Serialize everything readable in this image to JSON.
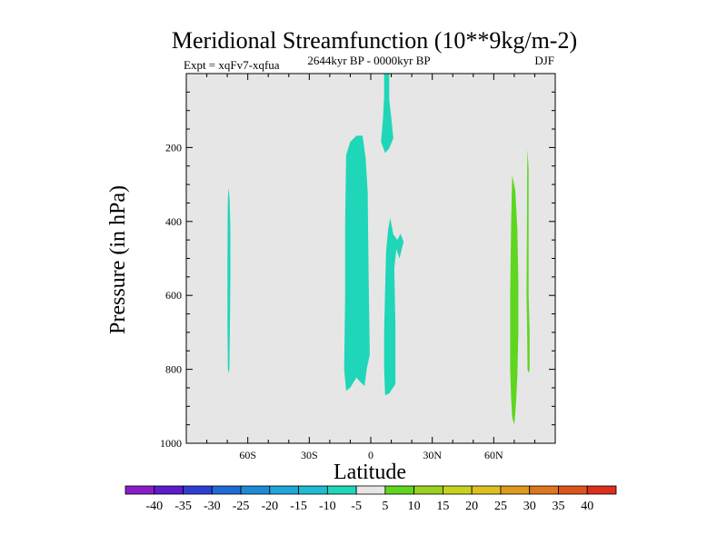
{
  "chart_data": {
    "type": "contour",
    "title": "Meridional Streamfunction (10**9kg/m-2)",
    "subtitle_left": "Expt = xqFv7-xqfua",
    "subtitle_center": "2644kyr BP - 0000kyr BP",
    "subtitle_right": "DJF",
    "xlabel": "Latitude",
    "ylabel": "Pressure (in hPa)",
    "xlim": [
      -90,
      90
    ],
    "ylim": [
      1000,
      0
    ],
    "x_ticks": [
      {
        "value": -60,
        "label": "60S"
      },
      {
        "value": -30,
        "label": "30S"
      },
      {
        "value": 0,
        "label": "0"
      },
      {
        "value": 30,
        "label": "30N"
      },
      {
        "value": 60,
        "label": "60N"
      }
    ],
    "y_ticks": [
      {
        "value": 200,
        "label": "200"
      },
      {
        "value": 400,
        "label": "400"
      },
      {
        "value": 600,
        "label": "600"
      },
      {
        "value": 800,
        "label": "800"
      },
      {
        "value": 1000,
        "label": "1000"
      }
    ],
    "background_color": "#e6e6e6",
    "colorbar": {
      "labels": [
        "-40",
        "-35",
        "-30",
        "-25",
        "-20",
        "-15",
        "-10",
        "-5",
        "5",
        "10",
        "15",
        "20",
        "25",
        "30",
        "35",
        "40"
      ],
      "colors": [
        "#8a1cc9",
        "#5a1ccc",
        "#2f3ed0",
        "#1f6bd5",
        "#1f8ad6",
        "#1fa6d8",
        "#1fbcd2",
        "#1fd6b8",
        "#e6e6e6",
        "#5ed61f",
        "#9ad11f",
        "#c7d21f",
        "#dcc01f",
        "#dc9a1f",
        "#dc761f",
        "#dc551f",
        "#dc2f1f"
      ]
    },
    "regions": [
      {
        "name": "neg-5-south-high-lat",
        "level": "-10 to -5",
        "color": "#1fd6b8",
        "points": [
          [
            -69.5,
            310
          ],
          [
            -69,
            330
          ],
          [
            -68.8,
            350
          ],
          [
            -68.5,
            420
          ],
          [
            -68.5,
            560
          ],
          [
            -68.7,
            680
          ],
          [
            -69,
            800
          ],
          [
            -69.3,
            810
          ],
          [
            -69.7,
            800
          ],
          [
            -69.9,
            680
          ],
          [
            -69.9,
            500
          ],
          [
            -69.8,
            360
          ]
        ]
      },
      {
        "name": "neg-5-tropics-main",
        "level": "-10 to -5",
        "color": "#1fd6b8",
        "points": [
          [
            -12,
            220
          ],
          [
            -10,
            185
          ],
          [
            -7,
            168
          ],
          [
            -4,
            168
          ],
          [
            -2.5,
            230
          ],
          [
            -1.5,
            320
          ],
          [
            -1,
            560
          ],
          [
            -0.5,
            760
          ],
          [
            -2,
            800
          ],
          [
            -3,
            845
          ],
          [
            -5,
            835
          ],
          [
            -7,
            822
          ],
          [
            -10,
            850
          ],
          [
            -12,
            858
          ],
          [
            -13,
            800
          ],
          [
            -12.5,
            600
          ],
          [
            -12.5,
            400
          ]
        ]
      },
      {
        "name": "neg-5-eq-upper",
        "level": "-10 to -5",
        "color": "#1fd6b8",
        "points": [
          [
            6.5,
            0
          ],
          [
            9,
            0
          ],
          [
            9,
            70
          ],
          [
            10,
            120
          ],
          [
            11,
            175
          ],
          [
            9,
            202
          ],
          [
            7,
            215
          ],
          [
            5,
            185
          ],
          [
            6,
            120
          ],
          [
            6.5,
            60
          ]
        ]
      },
      {
        "name": "neg-5-eq-lower",
        "level": "-10 to -5",
        "color": "#1fd6b8",
        "points": [
          [
            9.5,
            390
          ],
          [
            11,
            435
          ],
          [
            13,
            450
          ],
          [
            14.5,
            433
          ],
          [
            16,
            455
          ],
          [
            14,
            500
          ],
          [
            12.5,
            475
          ],
          [
            11.5,
            525
          ],
          [
            12,
            680
          ],
          [
            12,
            840
          ],
          [
            9,
            865
          ],
          [
            7,
            870
          ],
          [
            6.5,
            800
          ],
          [
            6.5,
            700
          ],
          [
            7,
            580
          ],
          [
            7.5,
            480
          ],
          [
            8.5,
            420
          ]
        ]
      },
      {
        "name": "pos-5-north-cell",
        "level": "5 to 10",
        "color": "#5ed61f",
        "points": [
          [
            69,
            275
          ],
          [
            70.5,
            315
          ],
          [
            71.5,
            420
          ],
          [
            72,
            560
          ],
          [
            72,
            700
          ],
          [
            71.5,
            820
          ],
          [
            71,
            880
          ],
          [
            70.5,
            920
          ],
          [
            70,
            950
          ],
          [
            69,
            930
          ],
          [
            68.5,
            880
          ],
          [
            68,
            800
          ],
          [
            68,
            600
          ],
          [
            68.5,
            400
          ]
        ]
      },
      {
        "name": "pos-5-north-thin",
        "level": "5 to 10",
        "color": "#5ed61f",
        "points": [
          [
            76.5,
            205
          ],
          [
            77,
            260
          ],
          [
            77,
            400
          ],
          [
            77,
            600
          ],
          [
            77.5,
            700
          ],
          [
            77.5,
            800
          ],
          [
            77,
            810
          ],
          [
            76.5,
            800
          ],
          [
            76.3,
            700
          ],
          [
            76,
            600
          ],
          [
            76.2,
            400
          ],
          [
            76.3,
            260
          ]
        ]
      }
    ]
  }
}
